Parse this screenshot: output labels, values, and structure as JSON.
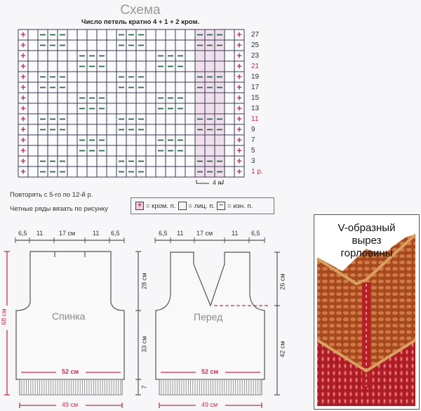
{
  "schema": {
    "title": "Схема",
    "subtitle": "Число петель кратно 4 + 1 + 2 кром.",
    "columns": 23,
    "row_labels": [
      "27",
      "25",
      "23",
      "21",
      "19",
      "17",
      "15",
      "13",
      "11",
      "9",
      "7",
      "5",
      "3",
      "1 р."
    ],
    "highlighted_rows": [
      "21",
      "11",
      "1 р."
    ],
    "row_pattern": [
      "A",
      "A",
      "B",
      "B",
      "A",
      "A",
      "B",
      "B",
      "A",
      "A",
      "B",
      "B",
      "A",
      "A"
    ],
    "patterns": {
      "A": [
        2,
        3,
        4,
        10,
        11,
        12,
        18,
        19,
        20
      ],
      "B": [
        6,
        7,
        8,
        14,
        15,
        16
      ]
    },
    "repeat_label": "4 п.",
    "colors": {
      "edge": "#c0305a",
      "purl": "#2e6a4e",
      "grid": "#3a3850",
      "highlight": "#e8c9e0"
    }
  },
  "notes": [
    "Повторять с 5-го по 12-й р.",
    "Четные ряды вязать по рисунку"
  ],
  "legend": {
    "edge": "= кром. п.",
    "knit": "= лиц. п.",
    "purl": "= изн. п."
  },
  "back": {
    "name": "Спинка",
    "top_dims": [
      "6,5",
      "11",
      "17 см",
      "11",
      "6,5"
    ],
    "height": "68 см",
    "side_dims": [
      "28 см",
      "33 см",
      "7"
    ],
    "width": "52 см",
    "rib_width": "49 см"
  },
  "front": {
    "name": "Перед",
    "top_dims": [
      "6,5",
      "11",
      "17 см",
      "11",
      "6,5"
    ],
    "side_dims": [
      "26 см",
      "42 см"
    ],
    "width": "52 см",
    "rib_width": "49 см"
  },
  "photo": {
    "title_lines": [
      "V-образный",
      "вырез",
      "горловины"
    ],
    "colors": {
      "yoke": "#b8572a",
      "body": "#b8222a",
      "edge": "#d9a060"
    }
  }
}
